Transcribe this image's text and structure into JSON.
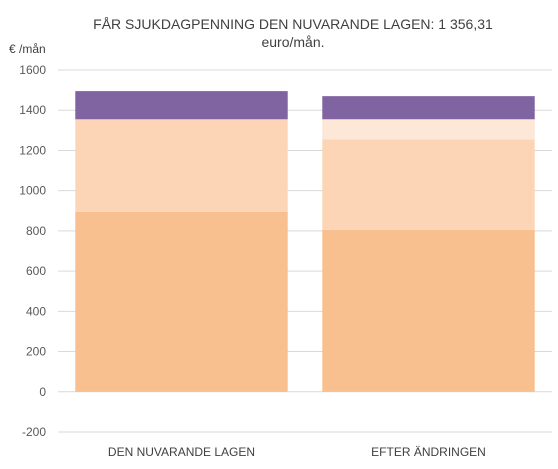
{
  "chart_data": {
    "type": "bar",
    "stacked": true,
    "title_line1": "FÅR SJUKDAGPENNING DEN NUVARANDE LAGEN: 1 356,31",
    "title_line2": "euro/mån.",
    "ylabel": "€ /mån",
    "ylim": [
      -200,
      1600
    ],
    "yticks": [
      -200,
      0,
      200,
      400,
      600,
      800,
      1000,
      1200,
      1400,
      1600
    ],
    "grid": true,
    "categories": [
      "DEN NUVARANDE LAGEN",
      "EFTER ÄNDRINGEN"
    ],
    "series": [
      {
        "color": "#f8bf8f",
        "values": [
          895,
          805
        ]
      },
      {
        "color": "#fbd5b6",
        "values": [
          460,
          450
        ]
      },
      {
        "color": "#fde7d6",
        "values": [
          0,
          100
        ]
      },
      {
        "color": "#8064a2",
        "values": [
          140,
          115
        ]
      }
    ]
  }
}
